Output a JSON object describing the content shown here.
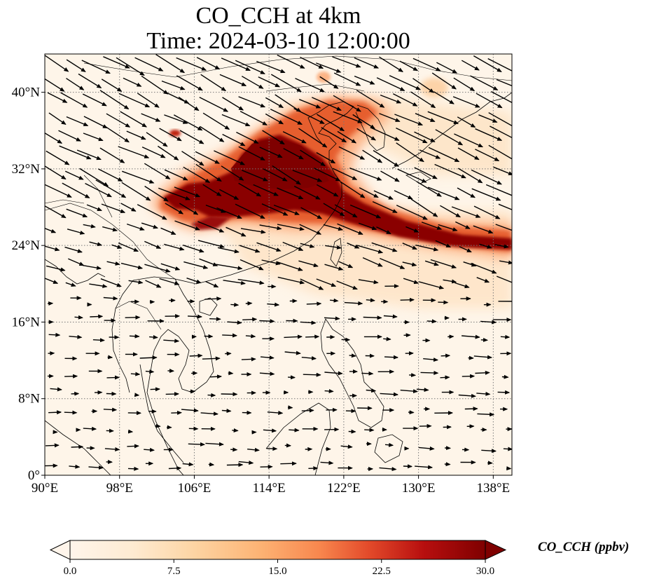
{
  "title_line1": "CO_CCH at 4km",
  "title_line2": "Time: 2024-03-10 12:00:00",
  "map": {
    "lon_range": [
      90,
      140
    ],
    "lat_range": [
      0,
      44
    ],
    "lon_ticks": [
      {
        "value": 90,
        "label": "90°E"
      },
      {
        "value": 98,
        "label": "98°E"
      },
      {
        "value": 106,
        "label": "106°E"
      },
      {
        "value": 114,
        "label": "114°E"
      },
      {
        "value": 122,
        "label": "122°E"
      },
      {
        "value": 130,
        "label": "130°E"
      },
      {
        "value": 138,
        "label": "138°E"
      }
    ],
    "lat_ticks": [
      {
        "value": 0,
        "label": "0°"
      },
      {
        "value": 8,
        "label": "8°N"
      },
      {
        "value": 16,
        "label": "16°N"
      },
      {
        "value": 24,
        "label": "24°N"
      },
      {
        "value": 32,
        "label": "32°N"
      },
      {
        "value": 40,
        "label": "40°N"
      }
    ],
    "gridlines": "dotted"
  },
  "colorbar": {
    "label": "CO_CCH (ppbv)",
    "ticks": [
      "0.0",
      "7.5",
      "15.0",
      "22.5",
      "30.0"
    ],
    "min": 0,
    "max": 30,
    "extend": "both",
    "colors": [
      "#fff5eb",
      "#fdd9ae",
      "#fdae6b",
      "#f16913",
      "#d94801",
      "#a50f15",
      "#7f0000"
    ]
  }
}
